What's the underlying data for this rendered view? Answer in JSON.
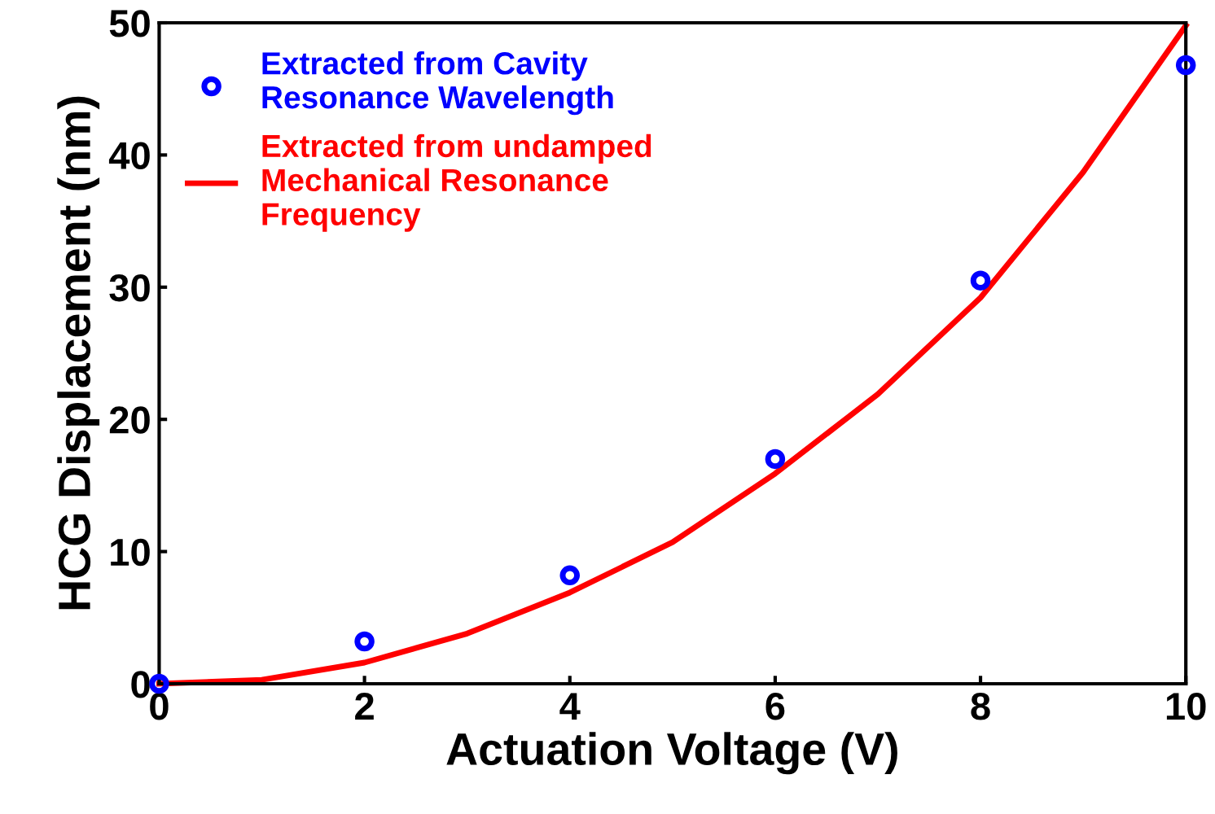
{
  "chart_data": {
    "type": "scatter",
    "xlabel": "Actuation Voltage (V)",
    "ylabel": "HCG Displacement (nm)",
    "xlim": [
      0,
      10
    ],
    "ylim": [
      0,
      50
    ],
    "xticks": [
      0,
      2,
      4,
      6,
      8,
      10
    ],
    "yticks": [
      0,
      10,
      20,
      30,
      40,
      50
    ],
    "grid": false,
    "legend": "top left",
    "series": [
      {
        "name": "Extracted from Cavity\nResonance Wavelength",
        "marker": "circle",
        "color": "#0000ff",
        "x": [
          0,
          2,
          4,
          6,
          8,
          10
        ],
        "values": [
          0,
          3.2,
          8.2,
          17,
          30.5,
          46.8
        ]
      },
      {
        "name": "Extracted from undamped\nMechanical Resonance\nFrequency",
        "type": "line",
        "marker": "none",
        "line_style": "solid",
        "color": "#ff0000",
        "x": [
          0,
          1,
          2,
          3,
          4,
          5,
          6,
          7,
          8,
          9,
          10
        ],
        "values": [
          0,
          0.3,
          1.6,
          3.8,
          6.9,
          10.7,
          15.9,
          21.9,
          29.2,
          38.7,
          49.8
        ]
      }
    ]
  }
}
